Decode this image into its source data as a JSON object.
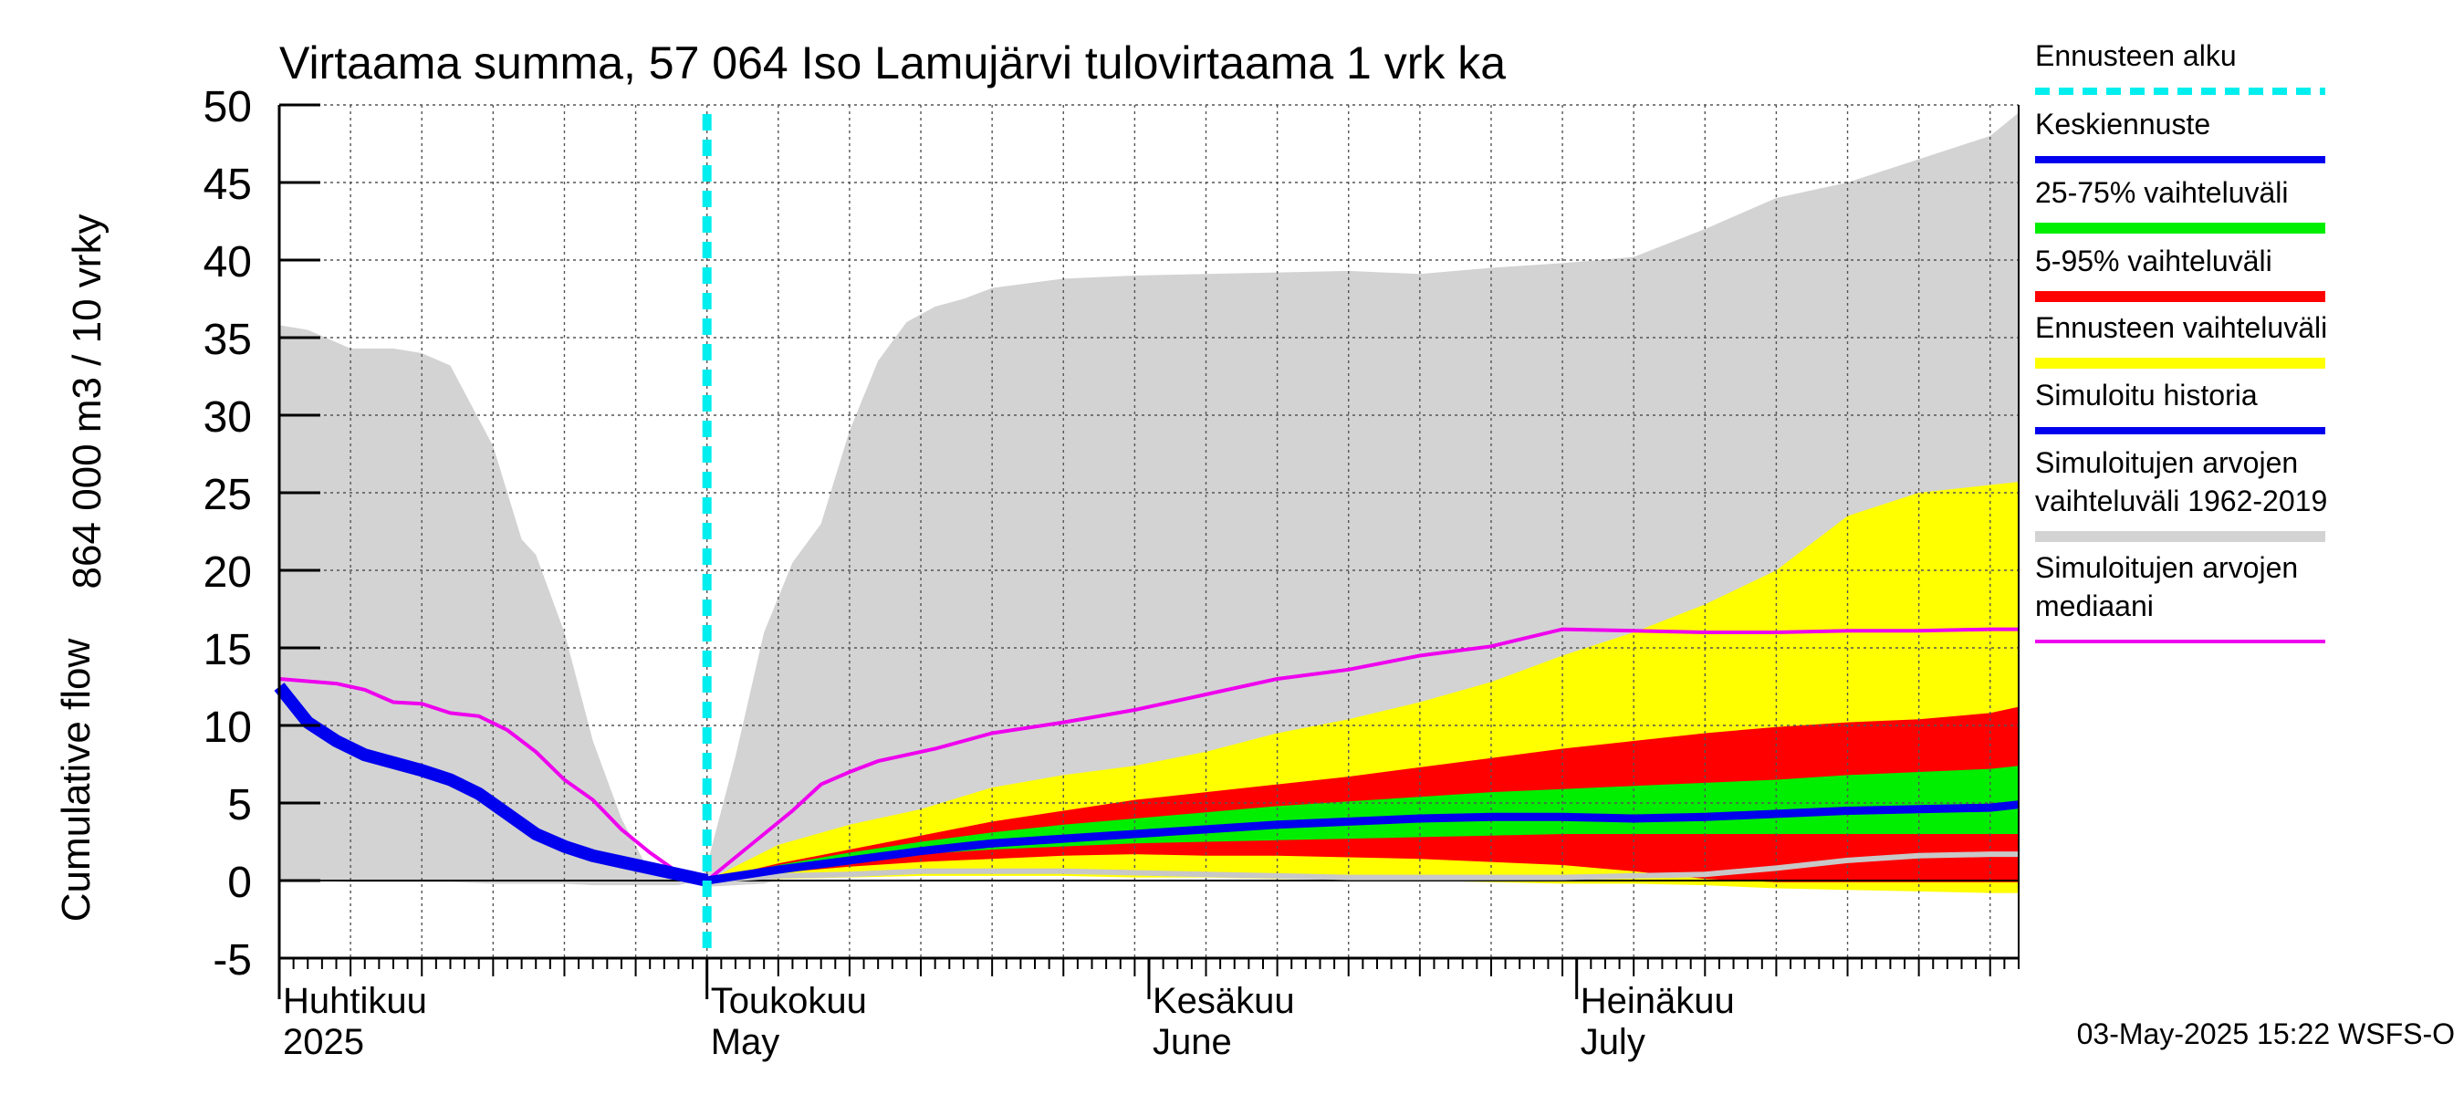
{
  "chart_data": {
    "type": "area",
    "title": "Virtaama summa, 57 064 Iso Lamujärvi tulovirtaama 1 vrk ka",
    "ylabel_lines": [
      "864 000 m3 / 10 vrky",
      "Cumulative flow"
    ],
    "ylim": [
      -5,
      50
    ],
    "yticks": [
      -5,
      0,
      5,
      10,
      15,
      20,
      25,
      30,
      35,
      40,
      45,
      50
    ],
    "x_range_days": [
      0,
      122
    ],
    "month_labels": [
      {
        "day": 0,
        "line1": "Huhtikuu",
        "line2": "2025"
      },
      {
        "day": 30,
        "line1": "Toukokuu",
        "line2": "May"
      },
      {
        "day": 61,
        "line1": "Kesäkuu",
        "line2": "June"
      },
      {
        "day": 91,
        "line1": "Heinäkuu",
        "line2": "July"
      }
    ],
    "grid": true,
    "forecast_start_day": 30,
    "legend_placement": "right",
    "footer": "03-May-2025 15:22 WSFS-O",
    "colors": {
      "hist_range": "#d3d3d3",
      "forecast_range": "#ffff00",
      "p5_95": "#ff0000",
      "p25_75": "#00ee00",
      "mean_forecast": "#0000ee",
      "simulated_history": "#0000ee",
      "median": "#ee00ee",
      "forecast_start": "#00eeee",
      "min_line": "#c8c8c8"
    },
    "legend": [
      {
        "key": "forecast_start",
        "lines": [
          "Ennusteen alku"
        ],
        "style": "dashed"
      },
      {
        "key": "mean_forecast",
        "lines": [
          "Keskiennuste"
        ],
        "style": "solid"
      },
      {
        "key": "p25_75",
        "lines": [
          "25-75% vaihteluväli"
        ],
        "style": "thick"
      },
      {
        "key": "p5_95",
        "lines": [
          "5-95% vaihteluväli"
        ],
        "style": "thick"
      },
      {
        "key": "forecast_range",
        "lines": [
          "Ennusteen vaihteluväli"
        ],
        "style": "thick"
      },
      {
        "key": "simulated_history",
        "lines": [
          "Simuloitu historia"
        ],
        "style": "solid"
      },
      {
        "key": "hist_range",
        "lines": [
          "Simuloitujen arvojen",
          "vaihteluväli 1962-2019"
        ],
        "style": "thick"
      },
      {
        "key": "median",
        "lines": [
          "Simuloitujen arvojen",
          "mediaani"
        ],
        "style": "thin"
      }
    ],
    "hist_range": {
      "day": [
        0,
        2,
        5,
        8,
        10,
        12,
        15,
        17,
        18,
        20,
        22,
        24,
        26,
        28,
        29.5,
        30,
        32,
        34,
        36,
        38,
        40,
        42,
        44,
        46,
        48,
        50,
        55,
        60,
        65,
        70,
        75,
        80,
        85,
        90,
        95,
        100,
        105,
        110,
        115,
        120,
        122
      ],
      "upper": [
        35.8,
        35.5,
        34.3,
        34.3,
        34.0,
        33.2,
        28.0,
        22.0,
        21.0,
        16.0,
        9.0,
        4.0,
        0.5,
        0.0,
        0.0,
        1.0,
        8.0,
        16.0,
        20.5,
        23.0,
        29.0,
        33.5,
        36.0,
        37.0,
        37.5,
        38.2,
        38.8,
        39.0,
        39.1,
        39.2,
        39.3,
        39.1,
        39.5,
        39.8,
        40.2,
        42.0,
        44.0,
        45.0,
        46.5,
        48.0,
        49.5
      ],
      "lower": [
        0.1,
        0.0,
        -0.1,
        -0.1,
        -0.1,
        -0.1,
        -0.2,
        -0.2,
        -0.2,
        -0.2,
        -0.3,
        -0.3,
        -0.3,
        -0.3,
        0.0,
        -0.4,
        -0.3,
        -0.2,
        0.3,
        0.5,
        0.6,
        0.7,
        0.8,
        0.9,
        0.9,
        0.9,
        0.9,
        0.8,
        0.8,
        0.6,
        0.6,
        0.4,
        0.3,
        0.4,
        0.6,
        0.5,
        0.6,
        0.6,
        0.6,
        0.7,
        0.8
      ]
    },
    "simulated_history": {
      "day": [
        0,
        2,
        4,
        6,
        8,
        10,
        12,
        14,
        16,
        18,
        20,
        22,
        24,
        26,
        28,
        30
      ],
      "values": [
        12.5,
        10.2,
        9.0,
        8.1,
        7.6,
        7.1,
        6.5,
        5.6,
        4.3,
        3.0,
        2.2,
        1.6,
        1.2,
        0.8,
        0.4,
        0.0
      ]
    },
    "median": {
      "day": [
        0,
        4,
        6,
        8,
        10,
        12,
        14,
        16,
        18,
        20,
        22,
        24,
        26,
        28,
        30,
        32,
        34,
        36,
        38,
        40,
        42,
        46,
        50,
        55,
        60,
        65,
        70,
        75,
        80,
        85,
        90,
        95,
        100,
        105,
        110,
        115,
        120,
        122
      ],
      "values": [
        13.0,
        12.7,
        12.3,
        11.5,
        11.4,
        10.8,
        10.6,
        9.7,
        8.3,
        6.5,
        5.2,
        3.3,
        1.8,
        0.5,
        0.0,
        1.5,
        3.0,
        4.5,
        6.2,
        7.0,
        7.7,
        8.5,
        9.5,
        10.2,
        11.0,
        12.0,
        13.0,
        13.6,
        14.5,
        15.1,
        16.2,
        16.1,
        16.0,
        16.0,
        16.1,
        16.1,
        16.2,
        16.2
      ]
    },
    "forecast": {
      "day": [
        30,
        35,
        40,
        45,
        50,
        55,
        60,
        65,
        70,
        75,
        80,
        85,
        90,
        95,
        100,
        105,
        110,
        115,
        120,
        122
      ],
      "min": [
        0.0,
        0.1,
        0.2,
        0.3,
        0.3,
        0.3,
        0.2,
        0.2,
        0.1,
        0.1,
        0.0,
        -0.1,
        -0.2,
        -0.2,
        -0.3,
        -0.5,
        -0.6,
        -0.7,
        -0.8,
        -0.8
      ],
      "p5": [
        0.0,
        0.5,
        0.9,
        1.2,
        1.4,
        1.6,
        1.7,
        1.6,
        1.6,
        1.5,
        1.4,
        1.2,
        1.0,
        0.6,
        0.1,
        -0.1,
        -0.1,
        -0.1,
        -0.1,
        -0.1
      ],
      "p25": [
        0.0,
        0.8,
        1.3,
        1.7,
        2.0,
        2.2,
        2.4,
        2.5,
        2.6,
        2.7,
        2.8,
        2.9,
        3.0,
        3.0,
        3.0,
        3.0,
        3.0,
        3.0,
        3.0,
        3.0
      ],
      "mean": [
        0.0,
        0.7,
        1.3,
        1.9,
        2.4,
        2.7,
        3.0,
        3.3,
        3.6,
        3.8,
        4.0,
        4.1,
        4.1,
        4.0,
        4.1,
        4.3,
        4.5,
        4.6,
        4.7,
        4.9
      ],
      "p75": [
        0.0,
        1.0,
        1.8,
        2.5,
        3.1,
        3.6,
        4.0,
        4.4,
        4.8,
        5.1,
        5.4,
        5.7,
        5.9,
        6.1,
        6.3,
        6.5,
        6.8,
        7.0,
        7.2,
        7.4
      ],
      "p95": [
        0.0,
        1.1,
        2.0,
        2.9,
        3.8,
        4.5,
        5.2,
        5.7,
        6.2,
        6.7,
        7.3,
        7.9,
        8.5,
        9.0,
        9.5,
        9.9,
        10.2,
        10.4,
        10.8,
        11.2
      ],
      "max": [
        0.0,
        2.3,
        3.6,
        4.6,
        6.0,
        6.8,
        7.4,
        8.3,
        9.5,
        10.4,
        11.5,
        12.8,
        14.5,
        16.0,
        17.8,
        20.0,
        23.5,
        25.0,
        25.5,
        25.7
      ],
      "min_line": [
        0.0,
        0.3,
        0.4,
        0.6,
        0.6,
        0.6,
        0.5,
        0.4,
        0.3,
        0.2,
        0.2,
        0.2,
        0.2,
        0.3,
        0.4,
        0.8,
        1.3,
        1.6,
        1.7,
        1.7
      ]
    }
  }
}
